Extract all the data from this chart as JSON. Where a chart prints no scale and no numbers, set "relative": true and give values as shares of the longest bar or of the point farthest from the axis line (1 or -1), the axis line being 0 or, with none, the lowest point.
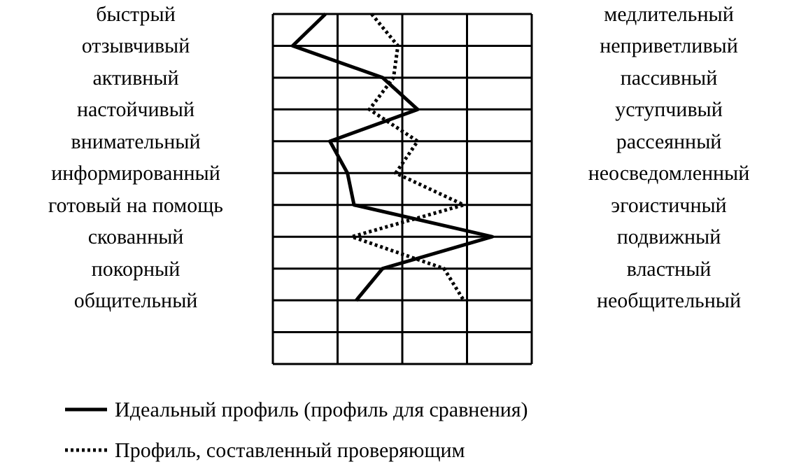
{
  "chart_data": {
    "type": "line",
    "orientation": "horizontal",
    "relative": true,
    "grid": true,
    "legend": "bottom left",
    "categories": [
      "быстрый",
      "отзывчивый",
      "активный",
      "настойчивый",
      "внимательный",
      "информированный",
      "готовый на помощь",
      "скованный",
      "покорный",
      "общительный"
    ],
    "y2_categories": [
      "медлительный",
      "неприветливый",
      "пассивный",
      "уступчивый",
      "рассеянный",
      "неосведомленный",
      "эгоистичный",
      "подвижный",
      "властный",
      "необщительный"
    ],
    "series": [
      {
        "name": "Идеальный профиль (профиль для сравнения)",
        "color": "#000000",
        "line_style": "solid",
        "values": [
          0.24,
          0.09,
          0.5,
          0.66,
          0.26,
          0.34,
          0.37,
          1,
          0.5,
          0.38
        ]
      },
      {
        "name": "Профиль, составленный проверяющим",
        "color": "#000000",
        "line_style": "dotted",
        "values": [
          0.45,
          0.57,
          0.55,
          0.44,
          0.66,
          0.56,
          0.87,
          0.36,
          0.78,
          0.87
        ]
      }
    ]
  }
}
